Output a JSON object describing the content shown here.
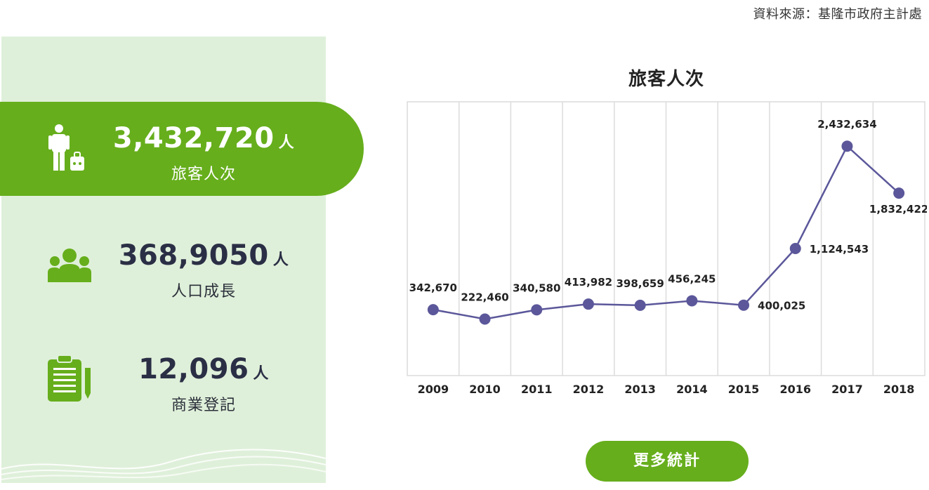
{
  "source": "資料來源：基隆市政府主計處",
  "stats": [
    {
      "value": "3,432,720",
      "unit": "人",
      "label": "旅客人次",
      "icon": "traveler-icon"
    },
    {
      "value": "368,9050",
      "unit": "人",
      "label": "人口成長",
      "icon": "people-icon"
    },
    {
      "value": "12,096",
      "unit": "人",
      "label": "商業登記",
      "icon": "clipboard-icon"
    }
  ],
  "more_button": "更多統計",
  "colors": {
    "green": "#66ae1c",
    "panel": "#dff0da",
    "line": "#5b579a"
  },
  "chart_data": {
    "type": "line",
    "title": "旅客人次",
    "x": [
      "2009",
      "2010",
      "2011",
      "2012",
      "2013",
      "2014",
      "2015",
      "2016",
      "2017",
      "2018"
    ],
    "values": [
      342670,
      222460,
      340580,
      413982,
      398659,
      456245,
      400025,
      1124543,
      2432634,
      1832422
    ],
    "labels": [
      "342,670",
      "222,460",
      "340,580",
      "413,982",
      "398,659",
      "456,245",
      "400,025",
      "1,124,543",
      "2,432,634",
      "1,832,422"
    ],
    "ylim": [
      -500000,
      3000000
    ],
    "grid": "vertical",
    "legend": "none"
  }
}
